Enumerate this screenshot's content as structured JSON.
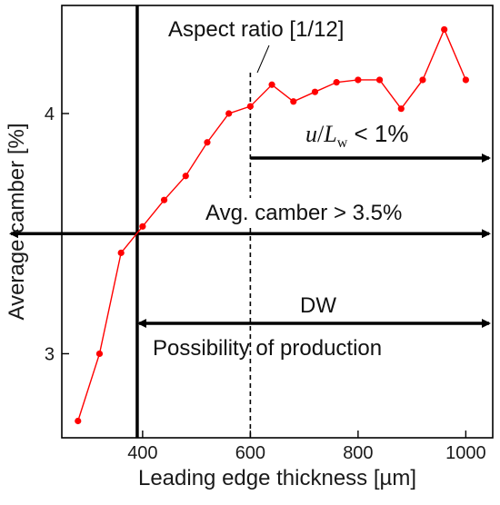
{
  "chart_data": {
    "type": "line",
    "xlabel": "Leading edge thickness [µm]",
    "ylabel": "Average camber [%]",
    "xlim": [
      250,
      1050
    ],
    "ylim": [
      2.65,
      4.45
    ],
    "xticks": [
      400,
      600,
      800,
      1000
    ],
    "yticks": [
      3,
      4
    ],
    "grid": false,
    "series": [
      {
        "color": "#ff0000",
        "x": [
          280,
          320,
          360,
          400,
          440,
          480,
          520,
          560,
          600,
          640,
          680,
          720,
          760,
          800,
          840,
          880,
          920,
          960,
          1000
        ],
        "y": [
          2.72,
          3.0,
          3.42,
          3.53,
          3.64,
          3.74,
          3.88,
          4.0,
          4.03,
          4.12,
          4.05,
          4.09,
          4.13,
          4.14,
          4.14,
          4.02,
          4.14,
          4.35,
          4.14
        ]
      }
    ],
    "annotations": {
      "aspect_ratio": "Aspect ratio [1/12]",
      "u_lw_u": "u",
      "u_lw_slash": "/",
      "u_lw_L": "L",
      "u_lw_sub": "w",
      "u_lw_rest": " < 1%",
      "avg_camber": "Avg. camber > 3.5%",
      "dw": "DW",
      "production": "Possibility of production"
    },
    "reference_lines": {
      "solid_x": 390,
      "dashed_x": 600,
      "horizontal_y": 3.5
    }
  }
}
